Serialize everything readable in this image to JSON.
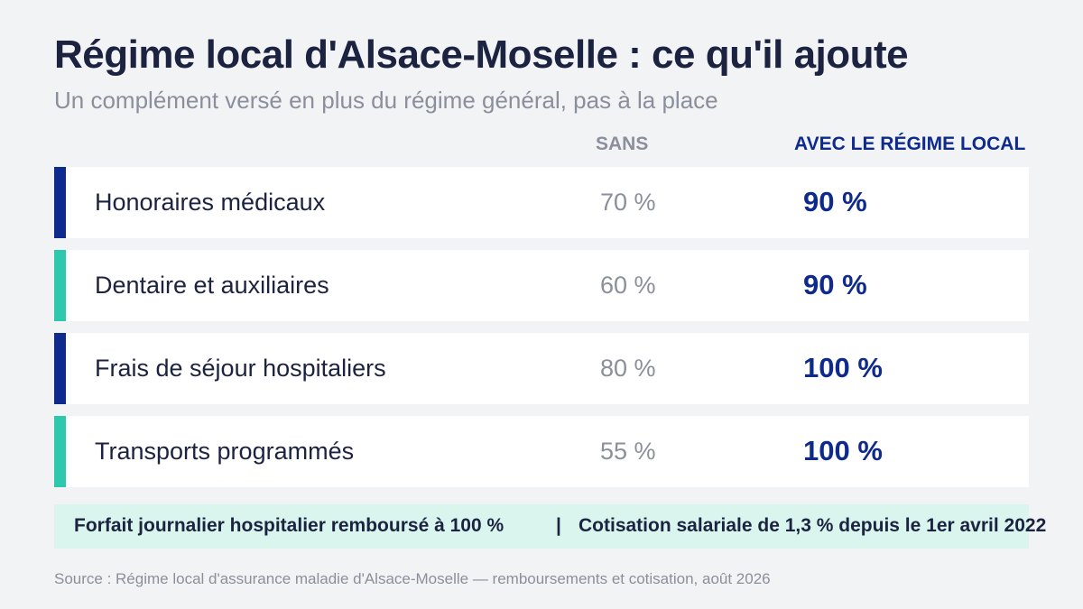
{
  "header": {
    "title": "Régime local d'Alsace-Moselle : ce qu'il ajoute",
    "subtitle": "Un complément versé en plus du régime général, pas à la place"
  },
  "columns": {
    "sans": "SANS",
    "avec": "AVEC LE RÉGIME LOCAL"
  },
  "colors": {
    "navy": "#0e2a8c",
    "teal": "#2ec9ad"
  },
  "rows": [
    {
      "label": "Honoraires médicaux",
      "sans": "70 %",
      "avec": "90 %",
      "accent": "#0e2a8c"
    },
    {
      "label": "Dentaire et auxiliaires",
      "sans": "60 %",
      "avec": "90 %",
      "accent": "#2ec9ad"
    },
    {
      "label": "Frais de séjour hospitaliers",
      "sans": "80 %",
      "avec": "100 %",
      "accent": "#0e2a8c"
    },
    {
      "label": "Transports programmés",
      "sans": "55 %",
      "avec": "100 %",
      "accent": "#2ec9ad"
    }
  ],
  "footer": {
    "note_1": "Forfait journalier hospitalier remboursé à 100 %",
    "separator": "|",
    "note_2": "Cotisation salariale de 1,3 % depuis le 1er avril 2022"
  },
  "source": "Source : Régime local d'assurance maladie d'Alsace-Moselle — remboursements et cotisation, août 2026"
}
